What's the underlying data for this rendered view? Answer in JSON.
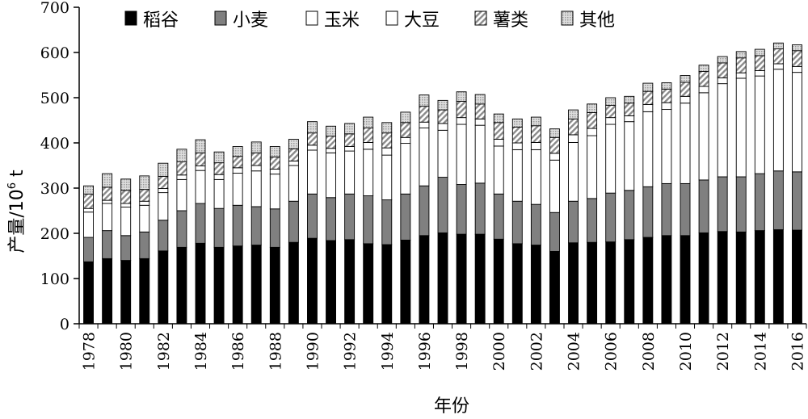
{
  "chart_data": {
    "type": "bar",
    "stacked": true,
    "xlabel": "年份",
    "ylabel": "产量/10",
    "ylabel_sup": "6",
    "ylabel_unit": " t",
    "ylim": [
      0,
      700
    ],
    "yticks": [
      0,
      100,
      200,
      300,
      400,
      500,
      600,
      700
    ],
    "grid": false,
    "legend": "top",
    "categories": [
      "1978",
      "1979",
      "1980",
      "1981",
      "1982",
      "1983",
      "1984",
      "1985",
      "1986",
      "1987",
      "1988",
      "1989",
      "1990",
      "1991",
      "1992",
      "1993",
      "1994",
      "1995",
      "1996",
      "1997",
      "1998",
      "1999",
      "2000",
      "2001",
      "2002",
      "2003",
      "2004",
      "2005",
      "2006",
      "2007",
      "2008",
      "2009",
      "2010",
      "2011",
      "2012",
      "2013",
      "2014",
      "2015",
      "2016"
    ],
    "tick_labels": [
      "1978",
      "1980",
      "1982",
      "1984",
      "1986",
      "1988",
      "1990",
      "1992",
      "1994",
      "1996",
      "1998",
      "2000",
      "2002",
      "2004",
      "2006",
      "2008",
      "2010",
      "2012",
      "2014",
      "2016"
    ],
    "series": [
      {
        "name": "稻谷",
        "color": "#000000",
        "pattern": "solid",
        "values": [
          137,
          144,
          140,
          144,
          161,
          169,
          178,
          169,
          172,
          174,
          169,
          180,
          189,
          184,
          186,
          177,
          175,
          185,
          195,
          201,
          198,
          198,
          187,
          177,
          174,
          160,
          179,
          180,
          181,
          186,
          191,
          195,
          195,
          201,
          204,
          203,
          206,
          208,
          207
        ]
      },
      {
        "name": "小麦",
        "color": "#808080",
        "pattern": "solid",
        "values": [
          54,
          62,
          55,
          59,
          68,
          81,
          88,
          86,
          90,
          85,
          85,
          91,
          98,
          95,
          101,
          106,
          99,
          102,
          110,
          123,
          110,
          113,
          100,
          94,
          90,
          86,
          92,
          97,
          108,
          109,
          112,
          115,
          115,
          117,
          121,
          122,
          126,
          130,
          129
        ]
      },
      {
        "name": "玉米",
        "color": "#ffffff",
        "pattern": "plain",
        "values": [
          56,
          60,
          63,
          59,
          61,
          69,
          73,
          64,
          71,
          79,
          77,
          79,
          97,
          99,
          95,
          103,
          99,
          112,
          128,
          104,
          133,
          128,
          106,
          114,
          121,
          116,
          130,
          139,
          152,
          152,
          166,
          164,
          178,
          193,
          206,
          218,
          216,
          225,
          220
        ]
      },
      {
        "name": "大豆",
        "color": "#ffffff",
        "pattern": "plain",
        "values": [
          8,
          7,
          8,
          9,
          9,
          10,
          10,
          11,
          12,
          12,
          11,
          10,
          11,
          10,
          10,
          15,
          16,
          13,
          13,
          15,
          15,
          14,
          15,
          15,
          16,
          15,
          17,
          16,
          15,
          13,
          16,
          15,
          15,
          14,
          13,
          12,
          12,
          12,
          13
        ]
      },
      {
        "name": "薯类",
        "color": "#a8a8a8",
        "pattern": "hatch",
        "values": [
          32,
          29,
          29,
          26,
          27,
          29,
          29,
          26,
          25,
          28,
          27,
          27,
          27,
          27,
          28,
          32,
          33,
          33,
          35,
          30,
          36,
          33,
          37,
          35,
          37,
          35,
          35,
          35,
          27,
          28,
          29,
          30,
          31,
          33,
          33,
          33,
          33,
          33,
          35
        ]
      },
      {
        "name": "其他",
        "color": "#c0c0c0",
        "pattern": "light",
        "values": [
          18,
          30,
          25,
          30,
          29,
          28,
          29,
          24,
          22,
          24,
          23,
          21,
          25,
          22,
          23,
          24,
          23,
          23,
          25,
          21,
          21,
          21,
          19,
          18,
          19,
          19,
          20,
          19,
          17,
          15,
          18,
          14,
          15,
          14,
          14,
          14,
          14,
          13,
          13
        ]
      }
    ]
  }
}
